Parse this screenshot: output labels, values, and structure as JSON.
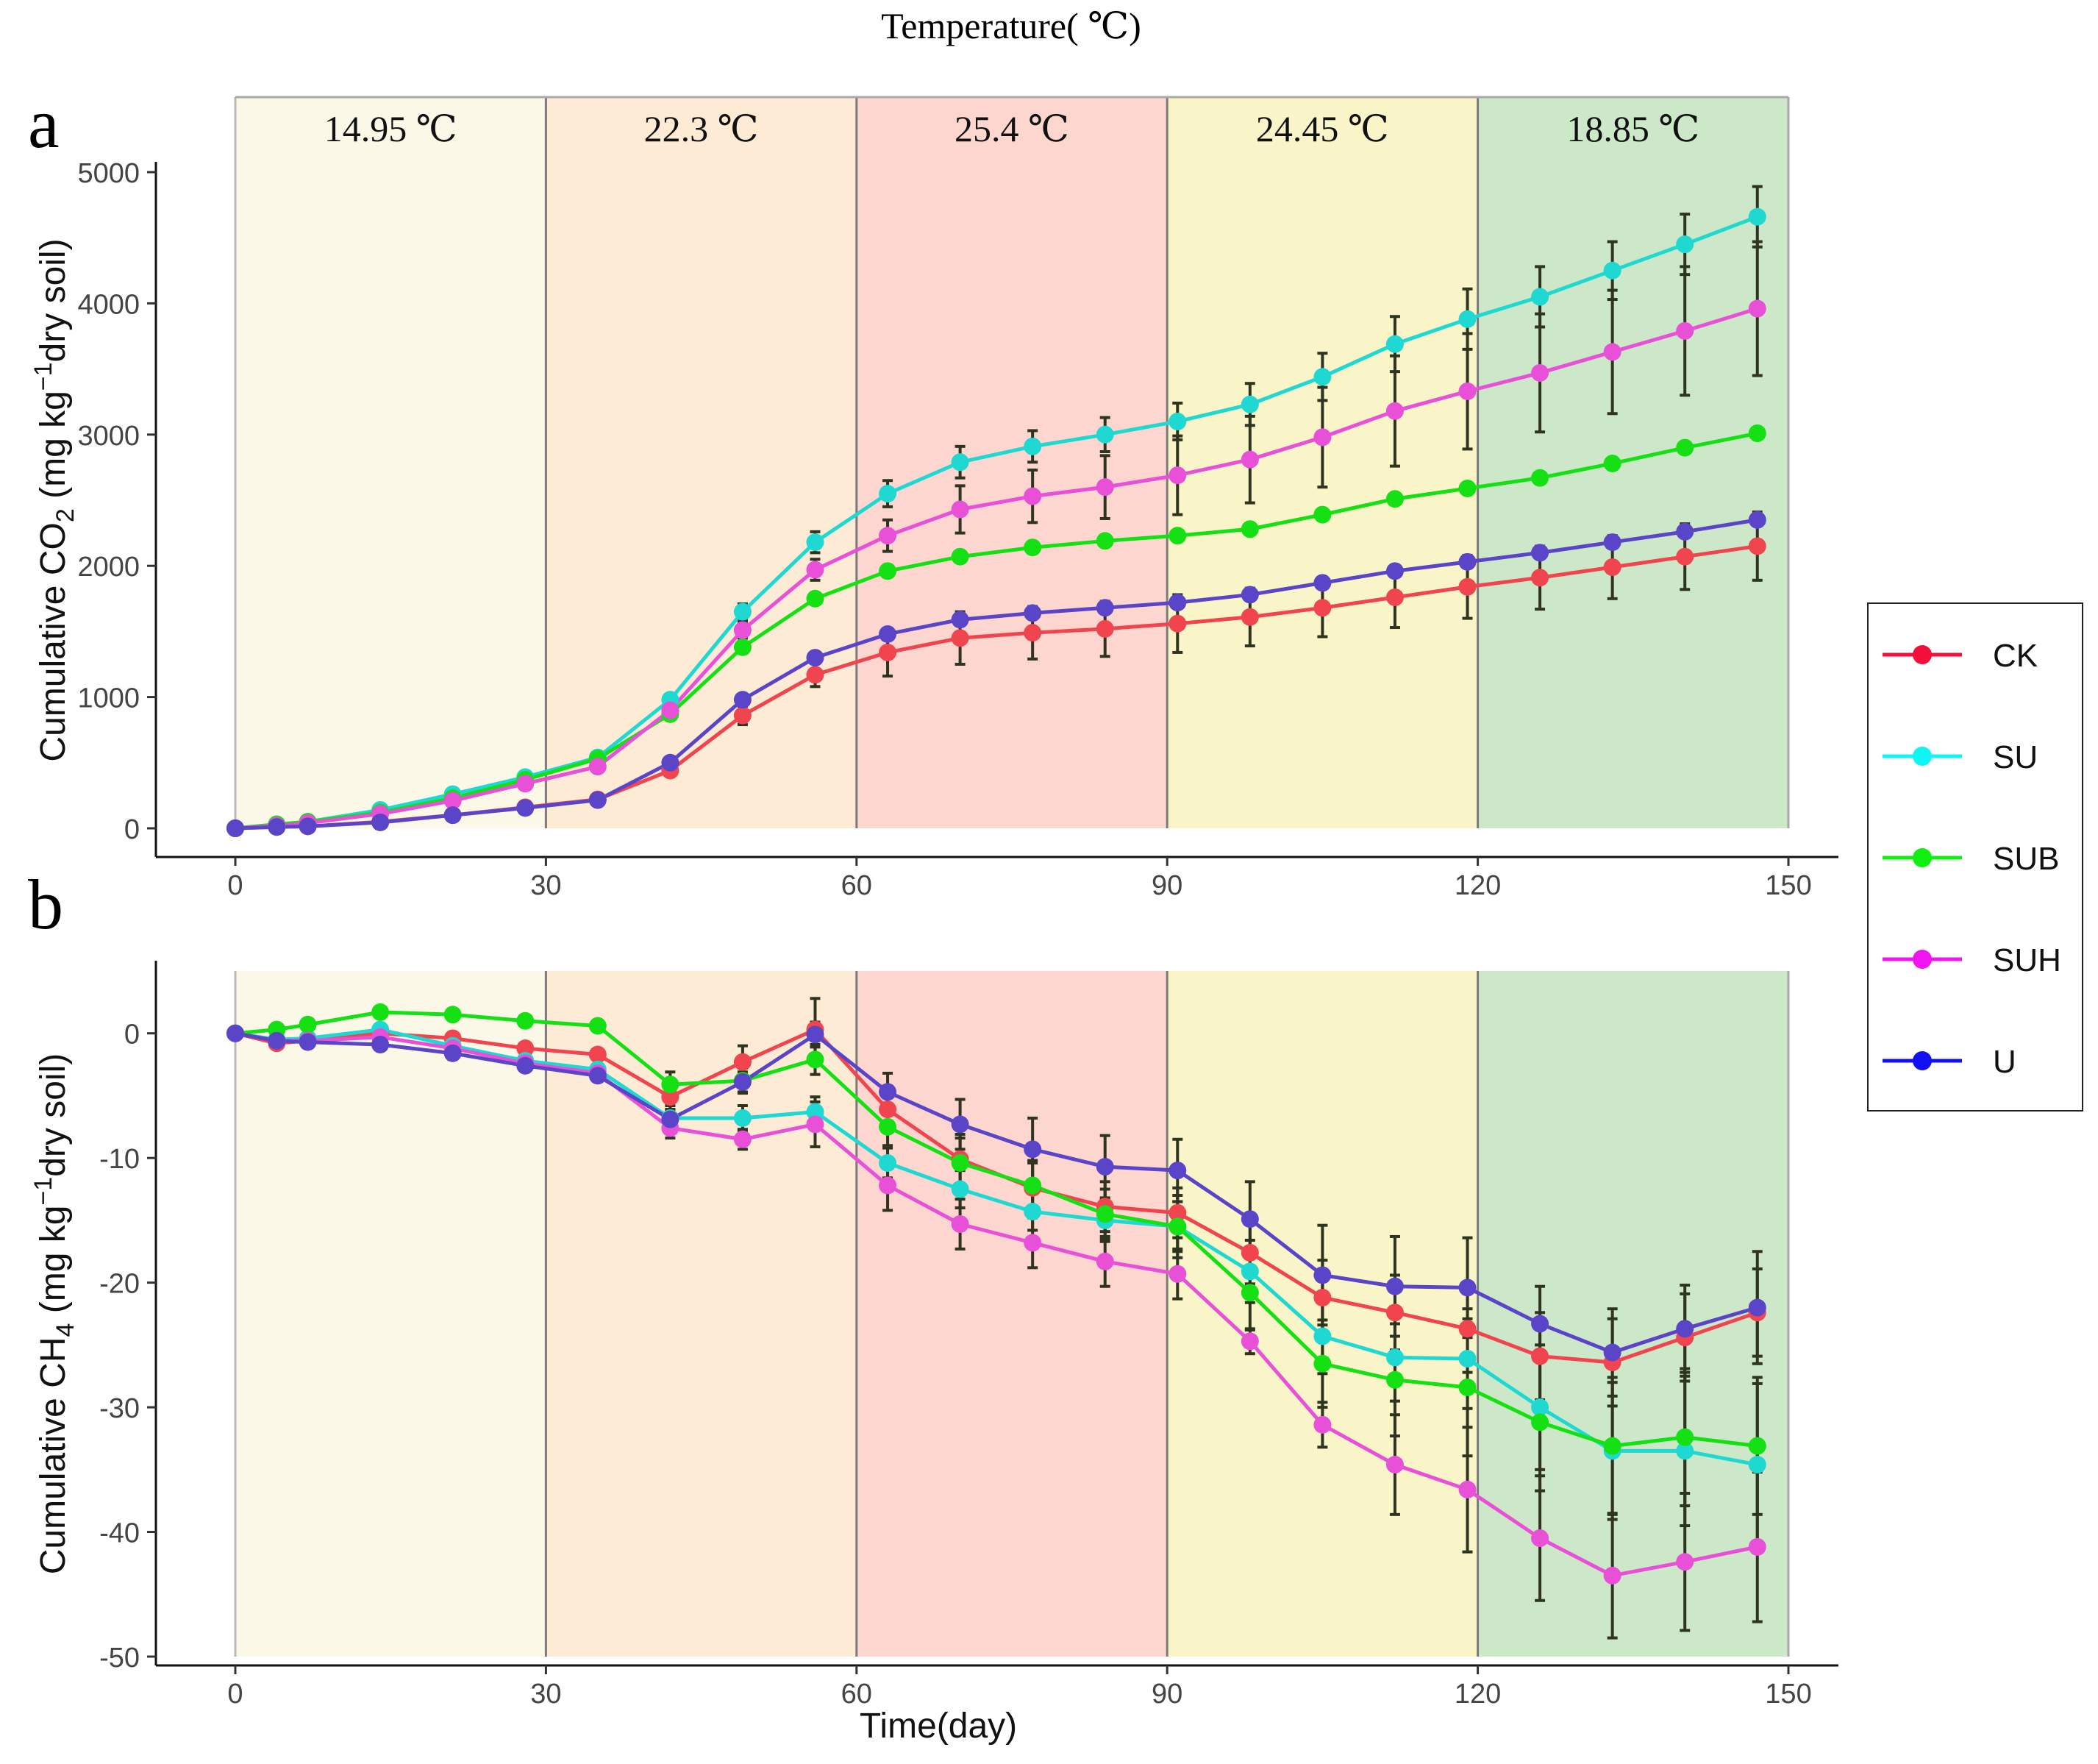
{
  "header_title": "Temperature( ℃)",
  "panel_labels": [
    "a",
    "b"
  ],
  "temperature_bands": [
    {
      "from": 0,
      "to": 30,
      "label": "14.95 ℃",
      "color": "#fcf8e8"
    },
    {
      "from": 30,
      "to": 60,
      "label": "22.3 ℃",
      "color": "#fdebd5"
    },
    {
      "from": 60,
      "to": 90,
      "label": "25.4 ℃",
      "color": "#fdd7cf"
    },
    {
      "from": 90,
      "to": 120,
      "label": "24.45 ℃",
      "color": "#faf5c8"
    },
    {
      "from": 120,
      "to": 150,
      "label": "18.85 ℃",
      "color": "#cde8c8"
    }
  ],
  "legend": {
    "items": [
      {
        "name": "CK",
        "color": "#f20f3c"
      },
      {
        "name": "SU",
        "color": "#11f4f4"
      },
      {
        "name": "SUB",
        "color": "#10f010"
      },
      {
        "name": "SUH",
        "color": "#f014f0"
      },
      {
        "name": "U",
        "color": "#1010f0"
      }
    ]
  },
  "chart_data": [
    {
      "type": "line",
      "panel": "a",
      "title": "",
      "xlabel": "",
      "ylabel": "Cumulative CO₂ (mg kg⁻¹dry soil)",
      "ylabel_parts": {
        "pre": "Cumulative CO",
        "sub": "2",
        "post": " (mg kg",
        "sup": "−1",
        "tail": "dry soil)"
      },
      "xlim": [
        0,
        150
      ],
      "ylim": [
        0,
        5000
      ],
      "xticks": [
        0,
        30,
        60,
        90,
        120,
        150
      ],
      "yticks": [
        0,
        1000,
        2000,
        3000,
        4000,
        5000
      ],
      "x": [
        0,
        4,
        7,
        14,
        21,
        28,
        35,
        42,
        49,
        56,
        63,
        70,
        77,
        84,
        91,
        98,
        105,
        112,
        119,
        126,
        133,
        140,
        147
      ],
      "series": [
        {
          "name": "CK",
          "color": "#f0454f",
          "values": [
            0,
            10,
            15,
            50,
            100,
            160,
            220,
            440,
            860,
            1170,
            1340,
            1450,
            1490,
            1520,
            1560,
            1610,
            1680,
            1760,
            1840,
            1910,
            1990,
            2070,
            2150
          ],
          "errors": [
            0,
            0,
            0,
            0,
            0,
            0,
            0,
            40,
            70,
            90,
            180,
            200,
            200,
            210,
            220,
            220,
            220,
            230,
            240,
            240,
            240,
            250,
            260
          ]
        },
        {
          "name": "SU",
          "color": "#20d8d2",
          "values": [
            0,
            30,
            50,
            140,
            260,
            390,
            540,
            980,
            1650,
            2180,
            2550,
            2790,
            2910,
            3000,
            3100,
            3230,
            3440,
            3690,
            3880,
            4050,
            4250,
            4450,
            4660
          ],
          "errors": [
            0,
            0,
            0,
            0,
            0,
            0,
            0,
            40,
            60,
            80,
            100,
            120,
            120,
            130,
            140,
            160,
            180,
            210,
            230,
            230,
            220,
            230,
            230
          ]
        },
        {
          "name": "SUB",
          "color": "#14e014",
          "values": [
            0,
            30,
            50,
            120,
            230,
            370,
            530,
            870,
            1380,
            1750,
            1960,
            2070,
            2140,
            2190,
            2230,
            2280,
            2390,
            2510,
            2590,
            2670,
            2780,
            2900,
            3010
          ]
        },
        {
          "name": "SUH",
          "color": "#e850d8",
          "values": [
            0,
            20,
            40,
            110,
            210,
            340,
            470,
            900,
            1510,
            1970,
            2230,
            2430,
            2530,
            2600,
            2690,
            2810,
            2980,
            3180,
            3330,
            3470,
            3630,
            3790,
            3960
          ],
          "errors": [
            0,
            0,
            0,
            0,
            0,
            0,
            0,
            40,
            60,
            80,
            120,
            180,
            200,
            240,
            300,
            330,
            380,
            420,
            440,
            450,
            470,
            490,
            510
          ]
        },
        {
          "name": "U",
          "color": "#5a44c8",
          "values": [
            0,
            10,
            15,
            45,
            100,
            155,
            215,
            500,
            980,
            1300,
            1480,
            1590,
            1640,
            1680,
            1720,
            1780,
            1870,
            1960,
            2030,
            2100,
            2180,
            2260,
            2350
          ]
        }
      ]
    },
    {
      "type": "line",
      "panel": "b",
      "title": "",
      "xlabel": "Time(day)",
      "ylabel": "Cumulative CH₄ (mg kg⁻¹dry soil)",
      "ylabel_parts": {
        "pre": "Cumulative CH",
        "sub": "4",
        "post": " (mg kg",
        "sup": "−1",
        "tail": "dry soil)"
      },
      "xlim": [
        0,
        150
      ],
      "ylim": [
        -50,
        5
      ],
      "xticks": [
        0,
        30,
        60,
        90,
        120,
        150
      ],
      "yticks": [
        0,
        -10,
        -20,
        -30,
        -40,
        -50
      ],
      "x": [
        0,
        4,
        7,
        14,
        21,
        28,
        35,
        42,
        49,
        56,
        63,
        70,
        77,
        84,
        91,
        98,
        105,
        112,
        119,
        126,
        133,
        140,
        147
      ],
      "series": [
        {
          "name": "CK",
          "color": "#f0454f",
          "values": [
            0,
            -0.8,
            -0.6,
            0,
            -0.4,
            -1.2,
            -1.7,
            -5.1,
            -2.3,
            0.3,
            -6.1,
            -10.1,
            -12.4,
            -13.9,
            -14.4,
            -17.6,
            -21.2,
            -22.4,
            -23.7,
            -25.9,
            -26.4,
            -24.4,
            -22.4
          ],
          "errors": [
            0,
            0,
            0,
            0,
            0,
            0,
            0,
            1.0,
            1.3,
            2.5,
            1.5,
            2.0,
            2.0,
            2.0,
            2.0,
            2.5,
            3.0,
            3.0,
            3.5,
            3.5,
            3.5,
            3.5,
            3.5
          ]
        },
        {
          "name": "SU",
          "color": "#20d8d2",
          "values": [
            0,
            -0.5,
            -0.4,
            0.3,
            -1.0,
            -2.2,
            -2.9,
            -6.8,
            -6.8,
            -6.3,
            -10.4,
            -12.5,
            -14.3,
            -15.0,
            -15.5,
            -19.1,
            -24.3,
            -26.0,
            -26.1,
            -30.0,
            -33.5,
            -33.5,
            -34.6
          ],
          "errors": [
            0,
            0,
            0,
            0,
            0,
            0,
            0,
            1.0,
            1.0,
            1.2,
            1.2,
            1.5,
            1.5,
            1.7,
            2.0,
            2.5,
            3.0,
            3.5,
            4.0,
            5.0,
            5.5,
            6.0,
            6.5
          ]
        },
        {
          "name": "SUB",
          "color": "#14e014",
          "values": [
            0,
            0.3,
            0.7,
            1.7,
            1.5,
            1.0,
            0.6,
            -4.1,
            -3.8,
            -2.1,
            -7.5,
            -10.4,
            -12.2,
            -14.5,
            -15.5,
            -20.8,
            -26.5,
            -27.8,
            -28.4,
            -31.2,
            -33.1,
            -32.4,
            -33.1
          ],
          "errors": [
            0,
            0,
            0,
            0,
            0,
            0,
            0,
            1.0,
            1.0,
            1.2,
            1.5,
            2.0,
            2.0,
            2.0,
            2.5,
            3.0,
            3.5,
            4.5,
            5.5,
            5.5,
            5.5,
            5.5,
            5.5
          ]
        },
        {
          "name": "SUH",
          "color": "#e850d8",
          "values": [
            0,
            -0.6,
            -0.6,
            -0.3,
            -1.2,
            -2.4,
            -3.2,
            -7.6,
            -8.5,
            -7.3,
            -12.2,
            -15.3,
            -16.8,
            -18.3,
            -19.3,
            -24.7,
            -31.4,
            -34.6,
            -36.6,
            -40.5,
            -43.5,
            -42.4,
            -41.2
          ],
          "errors": [
            0,
            0,
            0,
            0,
            0,
            0,
            0,
            0.8,
            0.8,
            1.8,
            2.0,
            2.0,
            2.0,
            2.0,
            2.0,
            1.0,
            1.8,
            4.0,
            5.0,
            5.0,
            5.0,
            5.5,
            6.0
          ]
        },
        {
          "name": "U",
          "color": "#5a44c8",
          "values": [
            0,
            -0.6,
            -0.7,
            -0.9,
            -1.6,
            -2.6,
            -3.4,
            -6.9,
            -3.9,
            -0.1,
            -4.7,
            -7.3,
            -9.3,
            -10.7,
            -11.0,
            -14.9,
            -19.4,
            -20.3,
            -20.4,
            -23.3,
            -25.6,
            -23.7,
            -22.0
          ],
          "errors": [
            0,
            0,
            0,
            0,
            0,
            0,
            0,
            0.8,
            0.8,
            1.0,
            1.5,
            2.0,
            2.5,
            2.5,
            2.5,
            3.0,
            4.0,
            4.0,
            4.0,
            3.0,
            3.5,
            3.5,
            4.5
          ]
        }
      ]
    }
  ]
}
